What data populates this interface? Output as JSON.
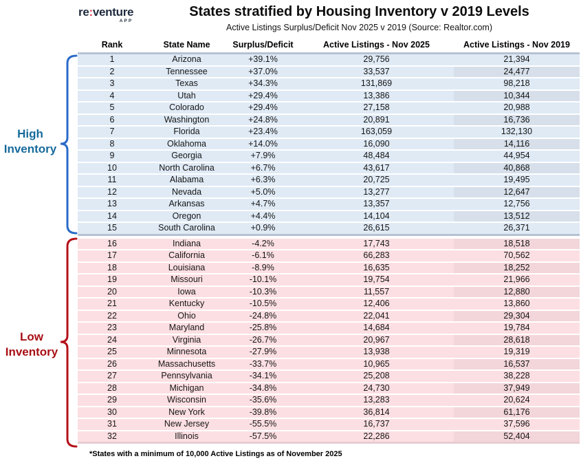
{
  "logo": {
    "name_left": "re",
    "colon": ":",
    "name_right": "venture",
    "sub": "APP"
  },
  "header": {
    "title": "States stratified by Housing Inventory v 2019 Levels",
    "subtitle": "Active Listings Surplus/Deficit Nov 2025 v 2019 (Source: Realtor.com)"
  },
  "groups": {
    "high": {
      "label": "High Inventory"
    },
    "low": {
      "label": "Low Inventory"
    }
  },
  "footnote": "*States with a minimum of 10,000 Active Listings as of November 2025",
  "colors": {
    "high_accent": "#2a6bc8",
    "high_label": "#166a9c",
    "low_accent": "#b5101a",
    "low_label": "#a80f15",
    "high_row_bg": "#dfeaf5",
    "high_alt_cell": "#d6dfea",
    "low_row_bg": "#fcdfe2",
    "low_alt_cell": "#f3d6da",
    "band_blue": "#b6c2d2",
    "band_pink": "#e6cdd2",
    "logo_navy": "#1f2b3d",
    "logo_red": "#e63a4e"
  },
  "chart_data": {
    "type": "table",
    "title": "States stratified by Housing Inventory v 2019 Levels",
    "subtitle": "Active Listings Surplus/Deficit Nov 2025 v 2019 (Source: Realtor.com)",
    "columns": [
      "Rank",
      "State Name",
      "Surplus/Deficit",
      "Active Listings - Nov 2025",
      "Active Listings - Nov 2019"
    ],
    "rows": [
      {
        "rank": "1",
        "state": "Arizona",
        "surplus": "+39.1%",
        "nov2025": "29,756",
        "nov2019": "21,394",
        "group": "high"
      },
      {
        "rank": "2",
        "state": "Tennessee",
        "surplus": "+37.0%",
        "nov2025": "33,537",
        "nov2019": "24,477",
        "group": "high"
      },
      {
        "rank": "3",
        "state": "Texas",
        "surplus": "+34.3%",
        "nov2025": "131,869",
        "nov2019": "98,218",
        "group": "high"
      },
      {
        "rank": "4",
        "state": "Utah",
        "surplus": "+29.4%",
        "nov2025": "13,386",
        "nov2019": "10,344",
        "group": "high"
      },
      {
        "rank": "5",
        "state": "Colorado",
        "surplus": "+29.4%",
        "nov2025": "27,158",
        "nov2019": "20,988",
        "group": "high"
      },
      {
        "rank": "6",
        "state": "Washington",
        "surplus": "+24.8%",
        "nov2025": "20,891",
        "nov2019": "16,736",
        "group": "high"
      },
      {
        "rank": "7",
        "state": "Florida",
        "surplus": "+23.4%",
        "nov2025": "163,059",
        "nov2019": "132,130",
        "group": "high"
      },
      {
        "rank": "8",
        "state": "Oklahoma",
        "surplus": "+14.0%",
        "nov2025": "16,090",
        "nov2019": "14,116",
        "group": "high"
      },
      {
        "rank": "9",
        "state": "Georgia",
        "surplus": "+7.9%",
        "nov2025": "48,484",
        "nov2019": "44,954",
        "group": "high"
      },
      {
        "rank": "10",
        "state": "North Carolina",
        "surplus": "+6.7%",
        "nov2025": "43,617",
        "nov2019": "40,868",
        "group": "high"
      },
      {
        "rank": "11",
        "state": "Alabama",
        "surplus": "+6.3%",
        "nov2025": "20,725",
        "nov2019": "19,495",
        "group": "high"
      },
      {
        "rank": "12",
        "state": "Nevada",
        "surplus": "+5.0%",
        "nov2025": "13,277",
        "nov2019": "12,647",
        "group": "high"
      },
      {
        "rank": "13",
        "state": "Arkansas",
        "surplus": "+4.7%",
        "nov2025": "13,357",
        "nov2019": "12,756",
        "group": "high"
      },
      {
        "rank": "14",
        "state": "Oregon",
        "surplus": "+4.4%",
        "nov2025": "14,104",
        "nov2019": "13,512",
        "group": "high"
      },
      {
        "rank": "15",
        "state": "South Carolina",
        "surplus": "+0.9%",
        "nov2025": "26,615",
        "nov2019": "26,371",
        "group": "high"
      },
      {
        "rank": "16",
        "state": "Indiana",
        "surplus": "-4.2%",
        "nov2025": "17,743",
        "nov2019": "18,518",
        "group": "low"
      },
      {
        "rank": "17",
        "state": "California",
        "surplus": "-6.1%",
        "nov2025": "66,283",
        "nov2019": "70,562",
        "group": "low"
      },
      {
        "rank": "18",
        "state": "Louisiana",
        "surplus": "-8.9%",
        "nov2025": "16,635",
        "nov2019": "18,252",
        "group": "low"
      },
      {
        "rank": "19",
        "state": "Missouri",
        "surplus": "-10.1%",
        "nov2025": "19,754",
        "nov2019": "21,966",
        "group": "low"
      },
      {
        "rank": "20",
        "state": "Iowa",
        "surplus": "-10.3%",
        "nov2025": "11,557",
        "nov2019": "12,880",
        "group": "low"
      },
      {
        "rank": "21",
        "state": "Kentucky",
        "surplus": "-10.5%",
        "nov2025": "12,406",
        "nov2019": "13,860",
        "group": "low"
      },
      {
        "rank": "22",
        "state": "Ohio",
        "surplus": "-24.8%",
        "nov2025": "22,041",
        "nov2019": "29,304",
        "group": "low"
      },
      {
        "rank": "23",
        "state": "Maryland",
        "surplus": "-25.8%",
        "nov2025": "14,684",
        "nov2019": "19,784",
        "group": "low"
      },
      {
        "rank": "24",
        "state": "Virginia",
        "surplus": "-26.7%",
        "nov2025": "20,967",
        "nov2019": "28,618",
        "group": "low"
      },
      {
        "rank": "25",
        "state": "Minnesota",
        "surplus": "-27.9%",
        "nov2025": "13,938",
        "nov2019": "19,319",
        "group": "low"
      },
      {
        "rank": "26",
        "state": "Massachusetts",
        "surplus": "-33.7%",
        "nov2025": "10,965",
        "nov2019": "16,537",
        "group": "low"
      },
      {
        "rank": "27",
        "state": "Pennsylvania",
        "surplus": "-34.1%",
        "nov2025": "25,208",
        "nov2019": "38,228",
        "group": "low"
      },
      {
        "rank": "28",
        "state": "Michigan",
        "surplus": "-34.8%",
        "nov2025": "24,730",
        "nov2019": "37,949",
        "group": "low"
      },
      {
        "rank": "29",
        "state": "Wisconsin",
        "surplus": "-35.6%",
        "nov2025": "13,283",
        "nov2019": "20,624",
        "group": "low"
      },
      {
        "rank": "30",
        "state": "New York",
        "surplus": "-39.8%",
        "nov2025": "36,814",
        "nov2019": "61,176",
        "group": "low"
      },
      {
        "rank": "31",
        "state": "New Jersey",
        "surplus": "-55.5%",
        "nov2025": "16,737",
        "nov2019": "37,596",
        "group": "low"
      },
      {
        "rank": "32",
        "state": "Illinois",
        "surplus": "-57.5%",
        "nov2025": "22,286",
        "nov2019": "52,404",
        "group": "low"
      }
    ]
  }
}
